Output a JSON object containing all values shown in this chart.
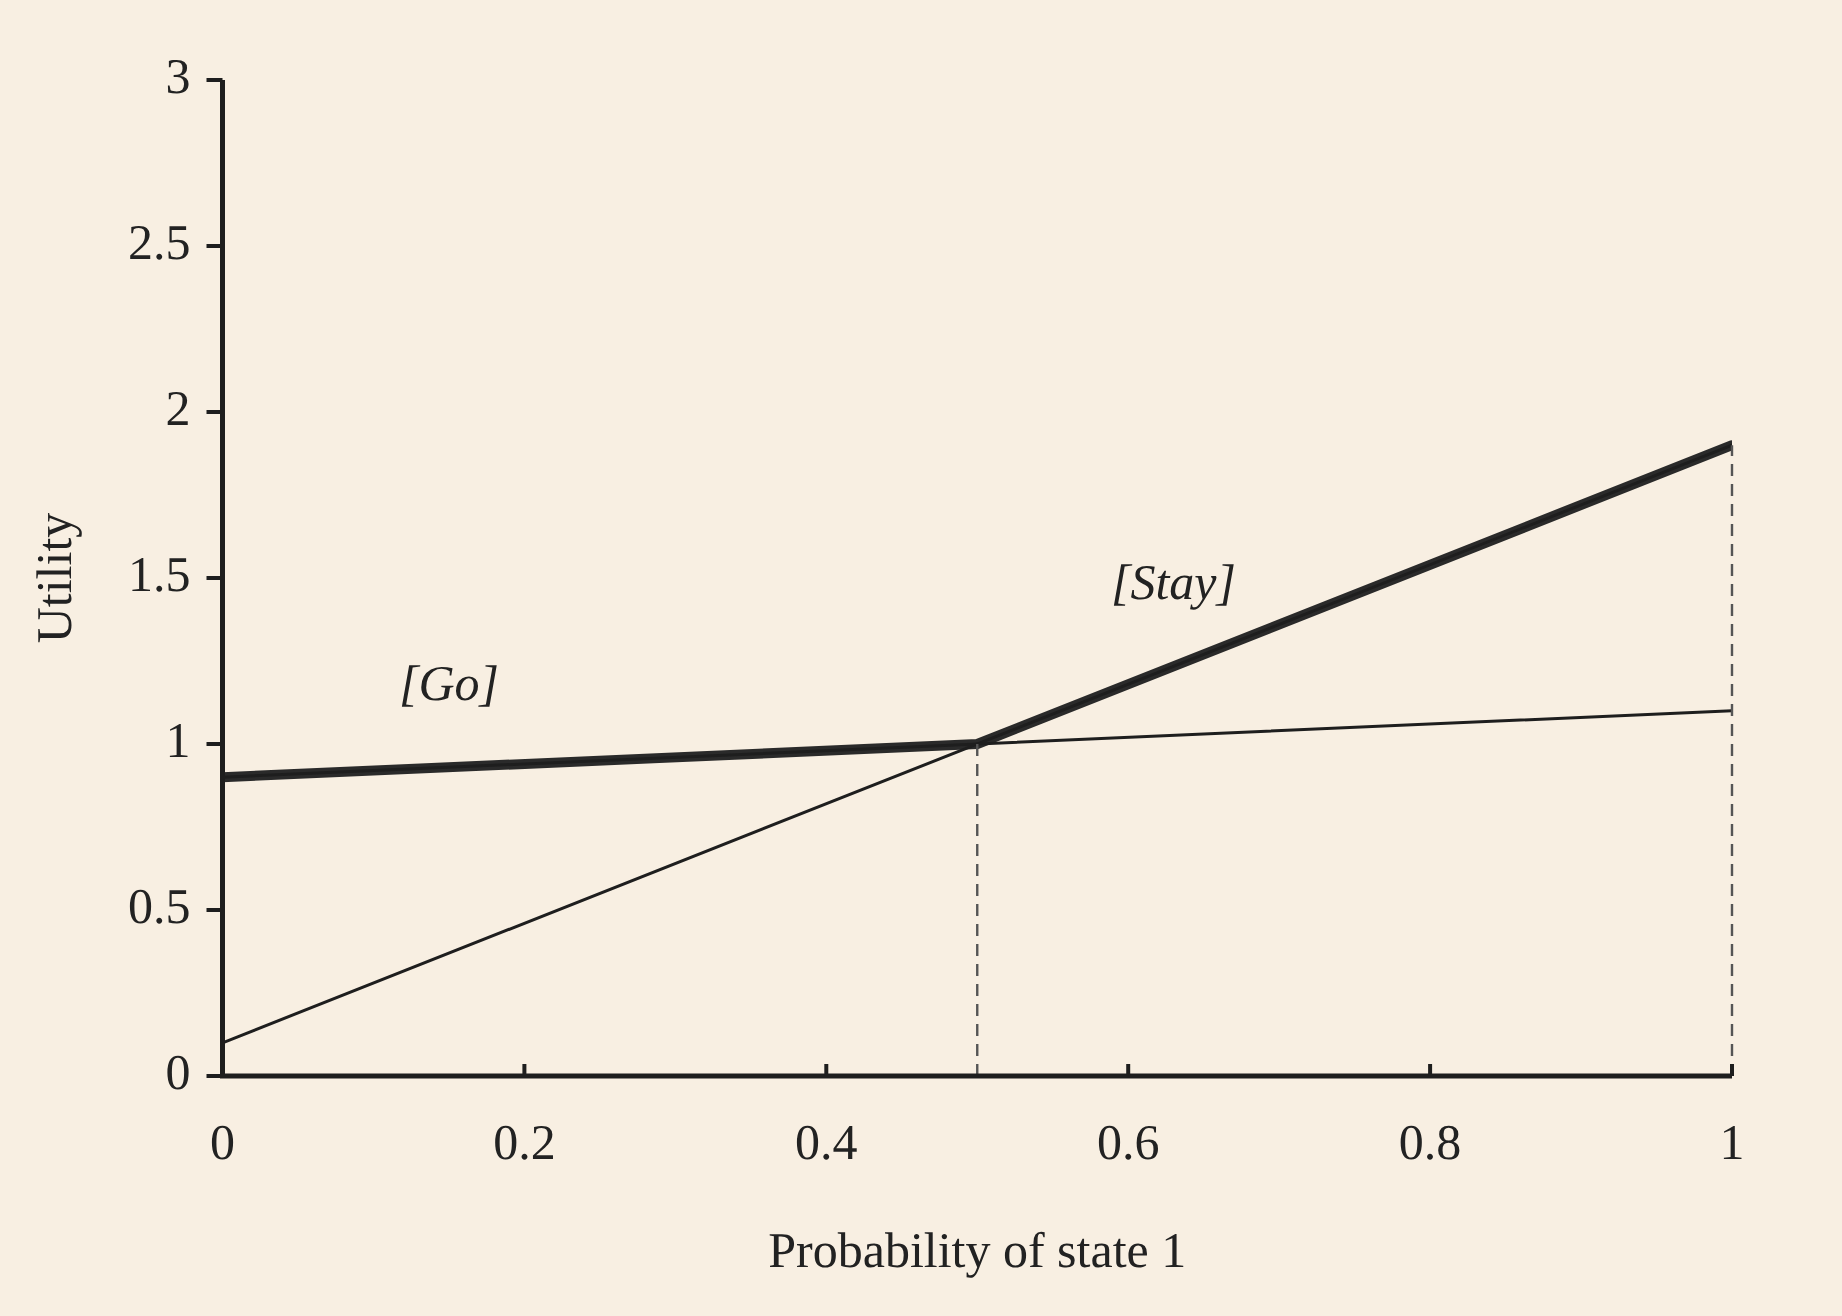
{
  "chart_data": {
    "type": "line",
    "xlabel": "Probability of state 1",
    "ylabel": "Utility",
    "xlim": [
      0,
      1
    ],
    "xticks": [
      0,
      0.2,
      0.4,
      0.6,
      0.8,
      1
    ],
    "ylim": [
      0,
      3
    ],
    "yticks": [
      0,
      0.5,
      1,
      1.5,
      2,
      2.5,
      3
    ],
    "grid": false,
    "legend": false,
    "marker": "none",
    "series": [
      {
        "name": "[Go]",
        "color": "#1e1e1e",
        "x": [
          0,
          1
        ],
        "values": [
          0.9,
          1.1
        ]
      },
      {
        "name": "[Stay]",
        "color": "#1e1e1e",
        "x": [
          0,
          1
        ],
        "values": [
          0.1,
          1.9
        ]
      },
      {
        "color": "#2a2a2a",
        "x": [
          0,
          0.5,
          1
        ],
        "values": [
          0.9,
          1.0,
          1.9
        ]
      }
    ],
    "ref_lines": [
      {
        "axis": "x",
        "value": 0.5,
        "line_style": "dashed",
        "color": "#555555"
      },
      {
        "axis": "x",
        "value": 1,
        "line_style": "dashed",
        "color": "#555555"
      }
    ]
  }
}
